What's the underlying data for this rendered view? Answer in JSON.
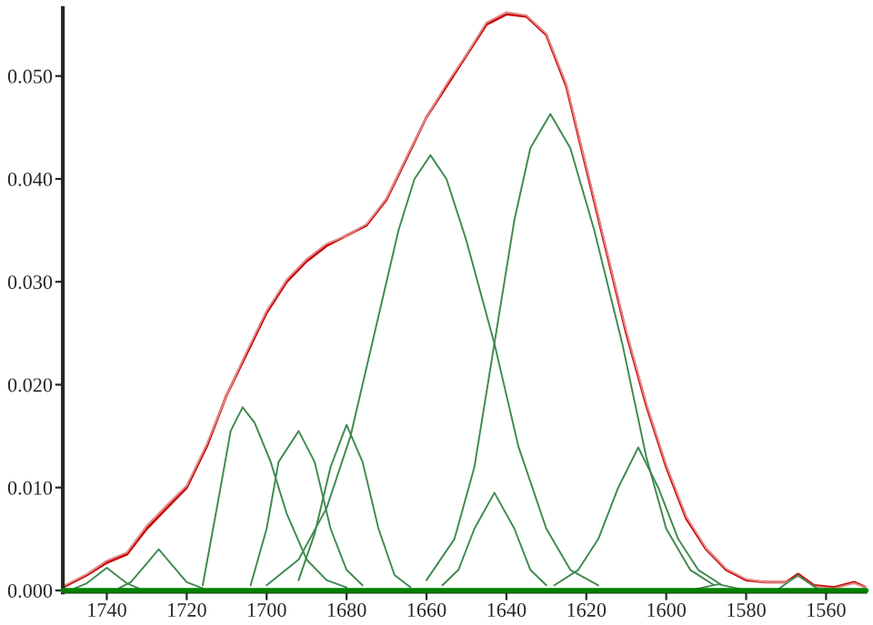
{
  "chart_data": {
    "type": "line",
    "xlim": [
      1751,
      1550
    ],
    "ylim": [
      -0.0002,
      0.0566
    ],
    "xticks": [
      1740,
      1720,
      1700,
      1680,
      1660,
      1640,
      1620,
      1600,
      1580,
      1560
    ],
    "yticks": [
      {
        "value": 0,
        "label": "0.000"
      },
      {
        "value": 0.01,
        "label": "0.010"
      },
      {
        "value": 0.02,
        "label": "0.020"
      },
      {
        "value": 0.03,
        "label": "0.030"
      },
      {
        "value": 0.04,
        "label": "0.040"
      },
      {
        "value": 0.05,
        "label": "0.050"
      }
    ],
    "grid": false,
    "legend": false,
    "marker": "none",
    "line_style": "solid",
    "ref_lines": [
      {
        "axis": "y",
        "value": 0,
        "color": "#008000"
      }
    ],
    "series": [
      {
        "color": "#3f8a4f",
        "x": [
          1748,
          1745,
          1743,
          1740,
          1737,
          1735,
          1732
        ],
        "values": [
          0.0002,
          0.0007,
          0.0013,
          0.0022,
          0.0013,
          0.0007,
          0.0002
        ]
      },
      {
        "color": "#3f8a4f",
        "x": [
          1737,
          1734,
          1730.5,
          1727,
          1723.5,
          1720,
          1716
        ],
        "values": [
          0.0002,
          0.0008,
          0.0024,
          0.004,
          0.0024,
          0.0008,
          0.0002
        ]
      },
      {
        "color": "#3f8a4f",
        "x": [
          1716,
          1712,
          1709,
          1706,
          1703,
          1699,
          1695,
          1690,
          1685,
          1680
        ],
        "values": [
          0.0005,
          0.009,
          0.0155,
          0.0178,
          0.0163,
          0.0125,
          0.0075,
          0.003,
          0.001,
          0.0003
        ]
      },
      {
        "color": "#3f8a4f",
        "x": [
          1704,
          1700,
          1697,
          1692,
          1688,
          1684,
          1680,
          1676
        ],
        "values": [
          0.0005,
          0.006,
          0.0125,
          0.0155,
          0.0125,
          0.006,
          0.002,
          0.0005
        ]
      },
      {
        "color": "#3f8a4f",
        "x": [
          1692,
          1688,
          1684,
          1680,
          1676,
          1672,
          1668,
          1664
        ],
        "values": [
          0.001,
          0.0055,
          0.012,
          0.0161,
          0.0125,
          0.006,
          0.0015,
          0.0003
        ]
      },
      {
        "color": "#3f8a4f",
        "x": [
          1700,
          1692,
          1685,
          1679,
          1673,
          1667,
          1663,
          1659,
          1655,
          1650,
          1643,
          1637,
          1630,
          1624,
          1617
        ],
        "values": [
          0.0005,
          0.003,
          0.008,
          0.015,
          0.025,
          0.035,
          0.04,
          0.0423,
          0.04,
          0.034,
          0.024,
          0.014,
          0.006,
          0.002,
          0.0005
        ]
      },
      {
        "color": "#3f8a4f",
        "x": [
          1656,
          1652,
          1648,
          1643,
          1638,
          1634,
          1630
        ],
        "values": [
          0.0005,
          0.002,
          0.006,
          0.0095,
          0.006,
          0.002,
          0.0005
        ]
      },
      {
        "color": "#3f8a4f",
        "x": [
          1660,
          1653,
          1648,
          1643,
          1638,
          1634,
          1629,
          1624,
          1618,
          1611,
          1605,
          1600,
          1594,
          1588
        ],
        "values": [
          0.001,
          0.005,
          0.012,
          0.024,
          0.036,
          0.043,
          0.0463,
          0.043,
          0.035,
          0.024,
          0.013,
          0.006,
          0.002,
          0.0005
        ]
      },
      {
        "color": "#3f8a4f",
        "x": [
          1628,
          1622,
          1617,
          1612,
          1607,
          1602,
          1597,
          1592,
          1586
        ],
        "values": [
          0.0005,
          0.002,
          0.005,
          0.01,
          0.0139,
          0.01,
          0.005,
          0.002,
          0.0005
        ]
      },
      {
        "color": "#3f8a4f",
        "x": [
          1593,
          1587,
          1581
        ],
        "values": [
          0.0001,
          0.0006,
          0.0001
        ]
      },
      {
        "color": "#3f8a4f",
        "x": [
          1572,
          1567,
          1562
        ],
        "values": [
          0.0001,
          0.0015,
          0.0001
        ]
      },
      {
        "color": "#e08a8a",
        "x": [
          1751,
          1745,
          1740,
          1735,
          1730,
          1725,
          1720,
          1715,
          1710,
          1705,
          1700,
          1695,
          1690,
          1685,
          1680,
          1675,
          1670,
          1665,
          1660,
          1655,
          1650,
          1645,
          1640,
          1635,
          1630,
          1625,
          1620,
          1615,
          1610,
          1605,
          1600,
          1595,
          1590,
          1585,
          1580,
          1575,
          1570,
          1567,
          1563,
          1558,
          1553,
          1550
        ],
        "values": [
          0.0004,
          0.0016,
          0.0029,
          0.0037,
          0.0063,
          0.0083,
          0.0102,
          0.0142,
          0.019,
          0.0232,
          0.0272,
          0.0302,
          0.0322,
          0.0337,
          0.0345,
          0.0356,
          0.0381,
          0.0421,
          0.046,
          0.0492,
          0.0521,
          0.0552,
          0.0562,
          0.0559,
          0.0541,
          0.0492,
          0.0412,
          0.0332,
          0.0252,
          0.0182,
          0.0122,
          0.0072,
          0.0041,
          0.0021,
          0.0011,
          0.0008,
          0.0008,
          0.0014,
          0.0004,
          0.0002,
          0.0007,
          0.0003
        ]
      },
      {
        "color": "#cc0000",
        "x": [
          1751,
          1745,
          1740,
          1735,
          1730,
          1725,
          1720,
          1715,
          1710,
          1705,
          1700,
          1695,
          1690,
          1685,
          1680,
          1675,
          1670,
          1665,
          1660,
          1655,
          1650,
          1645,
          1640,
          1635,
          1630,
          1625,
          1620,
          1615,
          1610,
          1605,
          1600,
          1595,
          1590,
          1585,
          1580,
          1575,
          1570,
          1567,
          1563,
          1558,
          1553,
          1550
        ],
        "values": [
          0.0003,
          0.0015,
          0.0027,
          0.0035,
          0.006,
          0.008,
          0.01,
          0.014,
          0.019,
          0.023,
          0.027,
          0.03,
          0.032,
          0.0335,
          0.0345,
          0.0355,
          0.038,
          0.042,
          0.046,
          0.049,
          0.052,
          0.055,
          0.056,
          0.0558,
          0.054,
          0.049,
          0.041,
          0.033,
          0.025,
          0.018,
          0.012,
          0.007,
          0.004,
          0.002,
          0.001,
          0.0008,
          0.0008,
          0.0016,
          0.0005,
          0.0003,
          0.0008,
          0.0003
        ]
      }
    ]
  }
}
